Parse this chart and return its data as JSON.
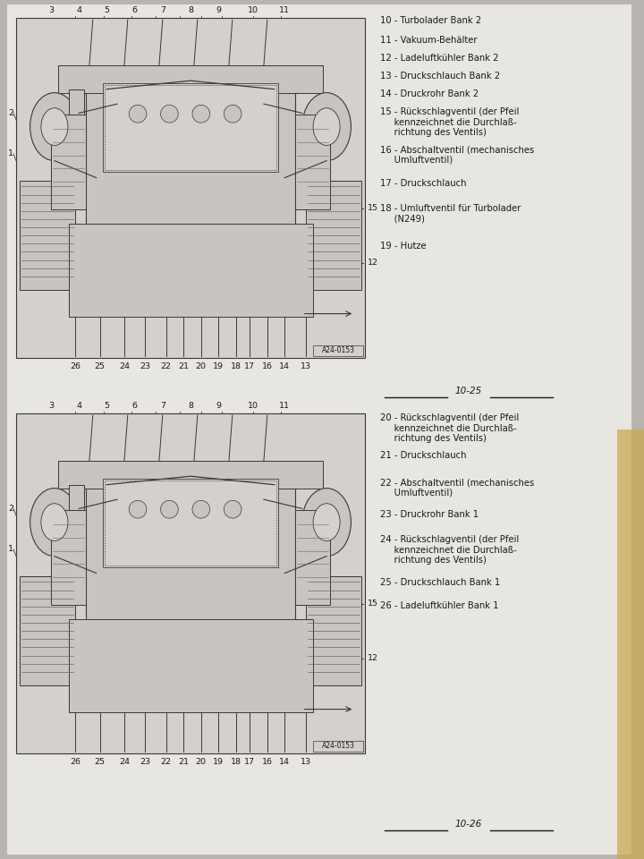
{
  "bg_outer": "#b8b4b0",
  "bg_page": "#e8e6e2",
  "bg_diagram": "#d4d0cc",
  "bg_diagram_inner": "#c8c4c0",
  "text_dark": "#1a1818",
  "text_mid": "#2a2828",
  "line_color": "#3a3838",
  "line_light": "#6a6868",
  "gold_strip": "#c8a84a",
  "panel1_labels": [
    [
      "10",
      " - Turbolader Bank 2",
      false
    ],
    [
      "11",
      " - Vakuum-Behälter",
      false
    ],
    [
      "12",
      " - Ladeluftkühler Bank 2",
      false
    ],
    [
      "13",
      " - Druckschlauch Bank 2",
      false
    ],
    [
      "14",
      " - Druckrohr Bank 2",
      false
    ],
    [
      "15",
      " - Rückschlagventil (der Pfeil\n     kennzeichnet die Durchlaß-\n     richtung des Ventils)",
      true
    ],
    [
      "16",
      " - Abschaltventil (mechanisches\n     Umluftventil)",
      true
    ],
    [
      "17",
      " - Druckschlauch",
      false
    ],
    [
      "18",
      " - Umluftventil für Turbolader\n     (N249)",
      true
    ],
    [
      "19",
      " - Hutze",
      false
    ]
  ],
  "panel2_labels": [
    [
      "20",
      " - Rückschlagventil (der Pfeil\n     kennzeichnet die Durchlaß-\n     richtung des Ventils)",
      true
    ],
    [
      "21",
      " - Druckschlauch",
      false
    ],
    [
      "22",
      " - Abschaltventil (mechanisches\n     Umluftventil)",
      true
    ],
    [
      "23",
      " - Druckrohr Bank 1",
      false
    ],
    [
      "24",
      " - Rückschlagventil (der Pfeil\n     kennzeichnet die Durchlaß-\n     richtung des Ventils)",
      true
    ],
    [
      "25",
      " - Druckschlauch Bank 1",
      false
    ],
    [
      "26",
      " - Ladeluftkühler Bank 1",
      false
    ]
  ],
  "top_nums": [
    "3",
    "4",
    "5",
    "6",
    "7",
    "8",
    "9",
    "10",
    "11"
  ],
  "bot_nums": [
    "26",
    "25",
    "24",
    "23",
    "22",
    "21",
    "20",
    "19",
    "18",
    "17",
    "16",
    "14",
    "13"
  ],
  "page_num_top": "10-25",
  "page_num_bot": "10-26",
  "diagram_id": "A24-0153",
  "fs_label": 7.2,
  "fs_num": 6.8,
  "fs_pagenum": 7.5,
  "fs_id": 5.5
}
